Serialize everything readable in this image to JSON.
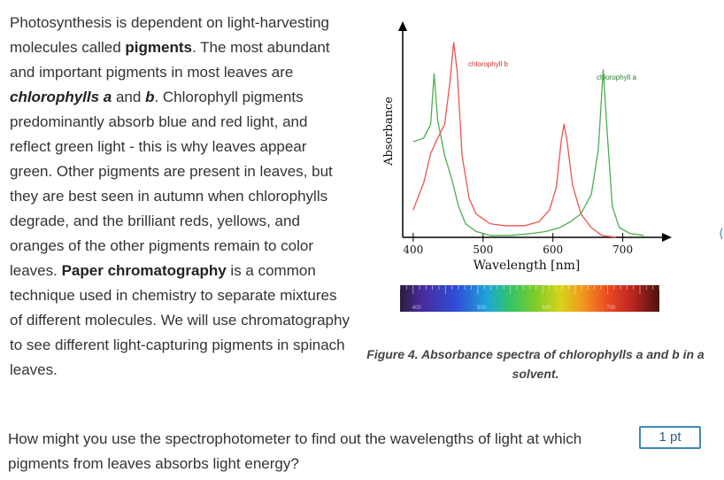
{
  "intro": {
    "t1": "Photosynthesis is dependent on light-harvesting molecules called ",
    "b1": "pigments",
    "t2": ". The most abundant and important pigments in most leaves are ",
    "bi1": "chlorophylls a",
    "t3": " and ",
    "bi2": "b",
    "t4": ". Chlorophyll pigments predominantly absorb blue and red light, and reflect green light - this is why leaves appear green. Other pigments are present in leaves, but they are best seen in autumn when chlorophylls degrade, and the brilliant reds, yellows, and oranges of the other pigments remain to color leaves. ",
    "b2": "Paper chromatography",
    "t5": " is a common technique used in chemistry to separate mixtures of different molecules. We will use chromatography to see different light-capturing pigments in spinach leaves."
  },
  "figure": {
    "ylabel": "Absorbance",
    "xlabel": "Wavelength [nm]",
    "xticks": [
      "400",
      "500",
      "600",
      "700"
    ],
    "spectrum_labels": [
      "400",
      "500",
      "600",
      "700"
    ],
    "series_labels": {
      "chl_b": "chlorophyll b",
      "chl_a": "chlorophyll a"
    },
    "colors": {
      "chl_a": "#4caf50",
      "chl_b": "#ef5350",
      "axis": "#000000"
    }
  },
  "chart_data": {
    "type": "line",
    "xlabel": "Wavelength [nm]",
    "ylabel": "Absorbance",
    "xlim": [
      385,
      760
    ],
    "series": [
      {
        "name": "chlorophyll a",
        "color": "#4caf50",
        "points": [
          [
            400,
            0.49
          ],
          [
            415,
            0.51
          ],
          [
            425,
            0.58
          ],
          [
            430,
            0.84
          ],
          [
            435,
            0.6
          ],
          [
            445,
            0.42
          ],
          [
            455,
            0.3
          ],
          [
            465,
            0.16
          ],
          [
            475,
            0.07
          ],
          [
            490,
            0.03
          ],
          [
            510,
            0.01
          ],
          [
            540,
            0.01
          ],
          [
            570,
            0.02
          ],
          [
            590,
            0.03
          ],
          [
            610,
            0.05
          ],
          [
            625,
            0.08
          ],
          [
            640,
            0.12
          ],
          [
            655,
            0.22
          ],
          [
            665,
            0.45
          ],
          [
            672,
            0.86
          ],
          [
            678,
            0.52
          ],
          [
            685,
            0.16
          ],
          [
            695,
            0.05
          ],
          [
            710,
            0.02
          ],
          [
            730,
            0.01
          ]
        ]
      },
      {
        "name": "chlorophyll b",
        "color": "#ef5350",
        "points": [
          [
            400,
            0.14
          ],
          [
            415,
            0.28
          ],
          [
            425,
            0.43
          ],
          [
            435,
            0.51
          ],
          [
            445,
            0.58
          ],
          [
            452,
            0.78
          ],
          [
            458,
            1.0
          ],
          [
            463,
            0.85
          ],
          [
            470,
            0.42
          ],
          [
            480,
            0.2
          ],
          [
            490,
            0.12
          ],
          [
            510,
            0.07
          ],
          [
            530,
            0.06
          ],
          [
            560,
            0.06
          ],
          [
            580,
            0.08
          ],
          [
            595,
            0.14
          ],
          [
            605,
            0.26
          ],
          [
            612,
            0.5
          ],
          [
            616,
            0.58
          ],
          [
            620,
            0.5
          ],
          [
            628,
            0.27
          ],
          [
            640,
            0.12
          ],
          [
            655,
            0.05
          ],
          [
            670,
            0.01
          ],
          [
            690,
            0.0
          ]
        ]
      }
    ]
  },
  "caption": "Figure 4. Absorbance spectra of chlorophylls a and b in a solvent.",
  "question": "How might you use the spectrophotometer to find out the wavelengths of light at which pigments from leaves absorbs light energy?",
  "points": "1 pt"
}
